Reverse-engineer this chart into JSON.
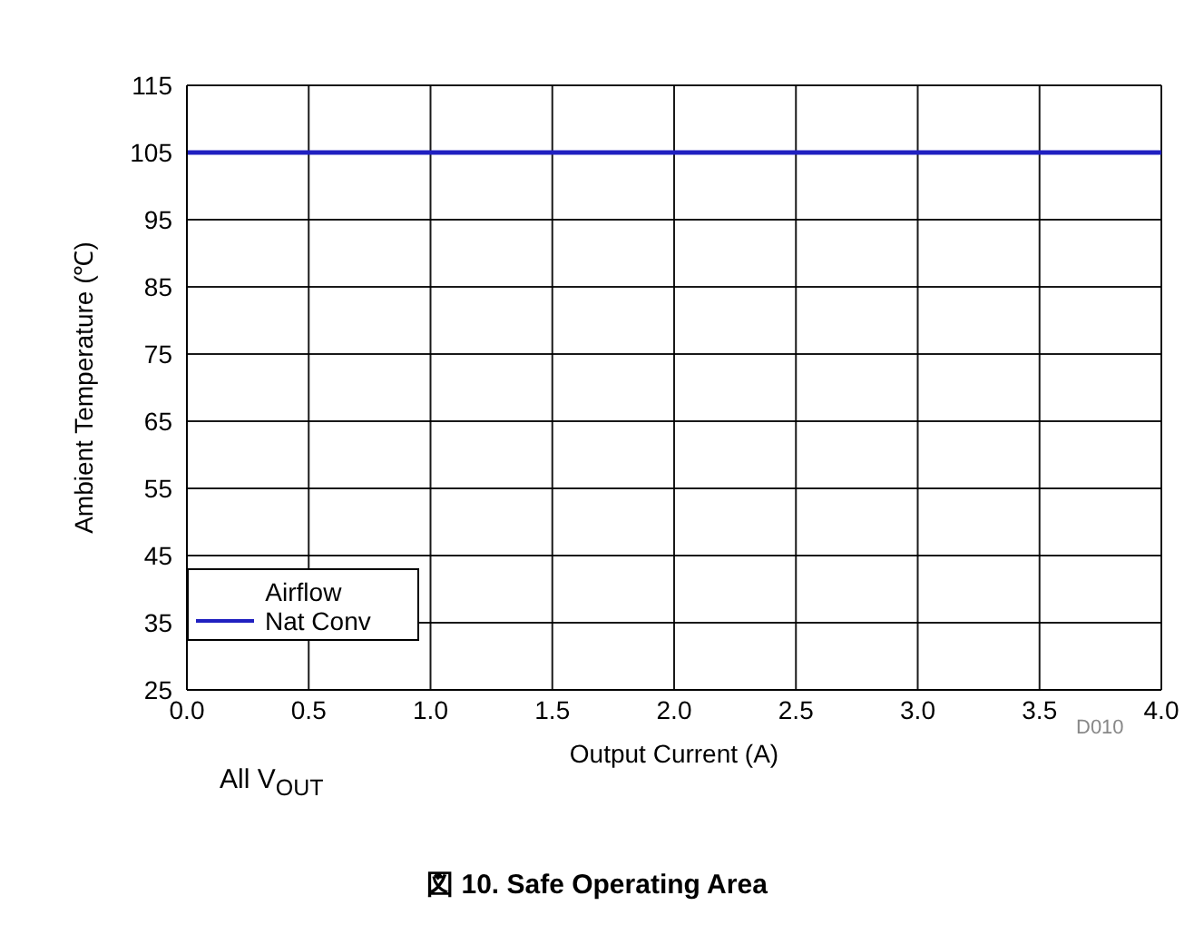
{
  "chart_data": {
    "type": "line",
    "title": "図 10. Safe Operating Area",
    "xlabel": "Output Current (A)",
    "ylabel": "Ambient Temperature (℃)",
    "legend_title": "Airflow",
    "x": [
      0,
      4
    ],
    "series": [
      {
        "name": "Nat Conv",
        "color": "#2020c0",
        "values": [
          105,
          105
        ]
      }
    ],
    "xlim": [
      0,
      4
    ],
    "xticks": [
      {
        "value": 0,
        "label": "0.0"
      },
      {
        "value": 0.5,
        "label": "0.5"
      },
      {
        "value": 1,
        "label": "1.0"
      },
      {
        "value": 1.5,
        "label": "1.5"
      },
      {
        "value": 2,
        "label": "2.0"
      },
      {
        "value": 2.5,
        "label": "2.5"
      },
      {
        "value": 3,
        "label": "3.0"
      },
      {
        "value": 3.5,
        "label": "3.5"
      },
      {
        "value": 4,
        "label": "4.0"
      }
    ],
    "ylim": [
      25,
      115
    ],
    "yticks": [
      25,
      35,
      45,
      55,
      65,
      75,
      85,
      95,
      105,
      115
    ],
    "grid": true,
    "legend": "bottom left",
    "marker": "none",
    "line_style": "solid",
    "annotations": [
      "D010",
      "All V$_{OUT}$"
    ]
  }
}
